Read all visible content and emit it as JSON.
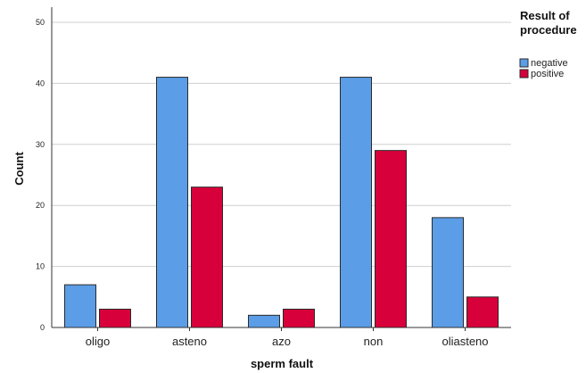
{
  "chart_data": {
    "type": "bar",
    "xlabel": "sperm fault",
    "ylabel": "Count",
    "ylim": [
      0,
      50
    ],
    "yticks": [
      0,
      10,
      20,
      30,
      40,
      50
    ],
    "grid": true,
    "legend": {
      "title_lines": [
        "Result of",
        "procedure"
      ],
      "placement": "top-right"
    },
    "categories": [
      "oligo",
      "asteno",
      "azo",
      "non",
      "oliasteno"
    ],
    "series": [
      {
        "name": "negative",
        "color": "#5b9de6",
        "values": [
          7,
          41,
          2,
          41,
          18
        ]
      },
      {
        "name": "positive",
        "color": "#d8003a",
        "values": [
          3,
          23,
          3,
          29,
          5
        ]
      }
    ]
  }
}
